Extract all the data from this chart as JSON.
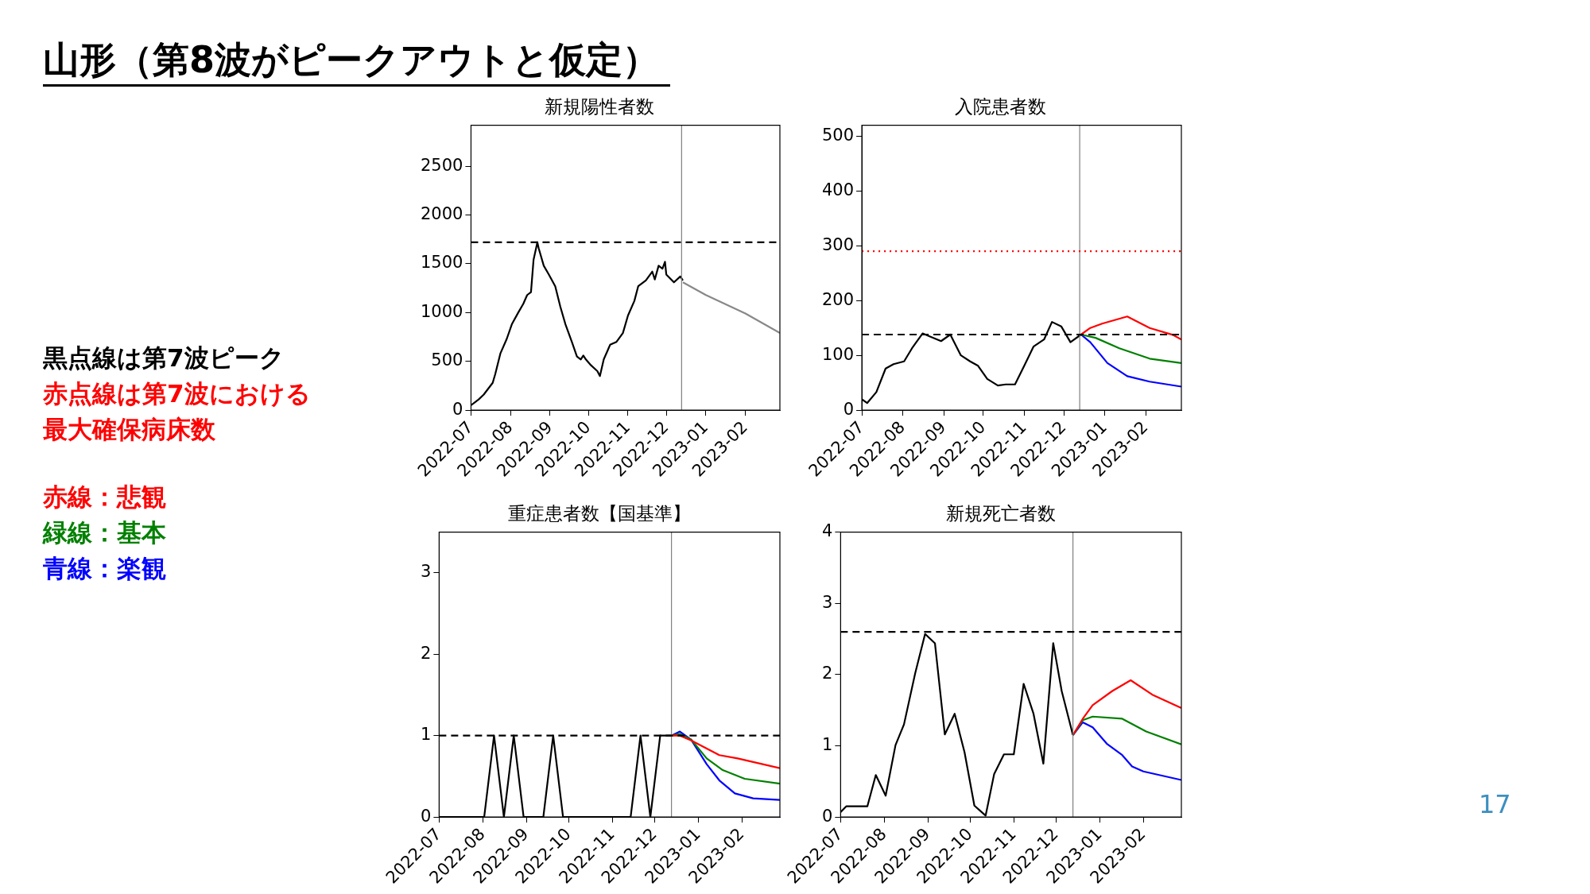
{
  "chart_data": [
    {
      "type": "other",
      "title": "山形（第8波がピークアウトと仮定）",
      "annotations": [
        "黒点線は第7波ピーク",
        "赤点線は第7波における",
        "最大確保病床数",
        "赤線：悲観",
        "緑線：基本",
        "青線：楽観",
        "17"
      ],
      "colors": [
        "#000000",
        "#ff0000",
        "#ff0000",
        "#ff0000",
        "#008000",
        "#0000ff",
        "#3d8fbf"
      ]
    },
    {
      "type": "line",
      "title": "新規陽性者数",
      "xlim": [
        "2022-07-01",
        "2023-02-28"
      ],
      "xticks": [
        "2022-07",
        "2022-08",
        "2022-09",
        "2022-10",
        "2022-11",
        "2022-12",
        "2023-01",
        "2023-02"
      ],
      "ylim": [
        0,
        2920
      ],
      "yticks": [
        0,
        500,
        1000,
        1500,
        2000,
        2500
      ],
      "grid": false,
      "legend": false,
      "ref_lines": [
        {
          "axis": "x",
          "value": "2022-12-13",
          "color": "#808080",
          "line_style": "solid"
        },
        {
          "axis": "y",
          "value": 1720,
          "color": "#000000",
          "line_style": "dashed"
        }
      ],
      "series": [
        {
          "color": "#000000",
          "x": [
            "2022-07-01",
            "2022-07-07",
            "2022-07-11",
            "2022-07-18",
            "2022-07-20",
            "2022-07-24",
            "2022-07-29",
            "2022-08-02",
            "2022-08-07",
            "2022-08-11",
            "2022-08-14",
            "2022-08-17",
            "2022-08-19",
            "2022-08-22",
            "2022-08-23",
            "2022-08-27",
            "2022-08-31",
            "2022-09-05",
            "2022-09-09",
            "2022-09-13",
            "2022-09-18",
            "2022-09-22",
            "2022-09-25",
            "2022-09-27",
            "2022-09-29",
            "2022-10-03",
            "2022-10-08",
            "2022-10-10",
            "2022-10-13",
            "2022-10-17",
            "2022-10-18",
            "2022-10-23",
            "2022-10-28",
            "2022-11-01",
            "2022-11-06",
            "2022-11-09",
            "2022-11-15",
            "2022-11-20",
            "2022-11-22",
            "2022-11-25",
            "2022-11-28",
            "2022-11-30",
            "2022-12-01",
            "2022-12-07",
            "2022-12-12",
            "2022-12-14"
          ],
          "values": [
            50,
            110,
            160,
            280,
            370,
            580,
            730,
            880,
            1000,
            1090,
            1180,
            1210,
            1540,
            1720,
            1660,
            1480,
            1390,
            1270,
            1060,
            880,
            700,
            550,
            520,
            560,
            520,
            460,
            400,
            350,
            520,
            640,
            670,
            700,
            790,
            970,
            1120,
            1270,
            1330,
            1420,
            1340,
            1480,
            1450,
            1520,
            1390,
            1310,
            1370,
            1330
          ]
        },
        {
          "color": "#888888",
          "x": [
            "2022-12-14",
            "2023-01-01",
            "2023-02-01",
            "2023-02-28"
          ],
          "values": [
            1310,
            1180,
            990,
            790
          ]
        }
      ]
    },
    {
      "type": "line",
      "title": "入院患者数",
      "xlim": [
        "2022-07-01",
        "2023-02-28"
      ],
      "xticks": [
        "2022-07",
        "2022-08",
        "2022-09",
        "2022-10",
        "2022-11",
        "2022-12",
        "2023-01",
        "2023-02"
      ],
      "ylim": [
        0,
        520
      ],
      "yticks": [
        0,
        100,
        200,
        300,
        400,
        500
      ],
      "grid": false,
      "legend": false,
      "ref_lines": [
        {
          "axis": "x",
          "value": "2022-12-13",
          "color": "#808080",
          "line_style": "solid"
        },
        {
          "axis": "y",
          "value": 138,
          "color": "#000000",
          "line_style": "dashed"
        },
        {
          "axis": "y",
          "value": 290,
          "color": "#ff0000",
          "line_style": "dotted"
        }
      ],
      "series": [
        {
          "color": "#000000",
          "x": [
            "2022-07-01",
            "2022-07-05",
            "2022-07-12",
            "2022-07-19",
            "2022-07-25",
            "2022-08-02",
            "2022-08-08",
            "2022-08-16",
            "2022-08-22",
            "2022-08-30",
            "2022-09-06",
            "2022-09-14",
            "2022-09-21",
            "2022-09-27",
            "2022-10-04",
            "2022-10-12",
            "2022-10-18",
            "2022-10-25",
            "2022-11-01",
            "2022-11-08",
            "2022-11-16",
            "2022-11-22",
            "2022-11-29",
            "2022-12-06",
            "2022-12-14"
          ],
          "values": [
            20,
            13,
            33,
            76,
            84,
            89,
            113,
            140,
            134,
            126,
            138,
            100,
            89,
            81,
            57,
            45,
            47,
            47,
            81,
            116,
            129,
            161,
            153,
            124,
            138
          ]
        },
        {
          "color": "#ff0000",
          "x": [
            "2022-12-14",
            "2022-12-21",
            "2022-12-30",
            "2023-01-18",
            "2023-02-04",
            "2023-02-22",
            "2023-02-28"
          ],
          "values": [
            138,
            150,
            158,
            171,
            150,
            137,
            129
          ]
        },
        {
          "color": "#008000",
          "x": [
            "2022-12-14",
            "2022-12-25",
            "2023-01-12",
            "2023-02-04",
            "2023-02-28"
          ],
          "values": [
            138,
            132,
            113,
            94,
            86
          ]
        },
        {
          "color": "#0000ff",
          "x": [
            "2022-12-14",
            "2022-12-21",
            "2023-01-03",
            "2023-01-18",
            "2023-02-04",
            "2023-02-28"
          ],
          "values": [
            138,
            124,
            86,
            62,
            52,
            43
          ]
        }
      ]
    },
    {
      "type": "line",
      "title": "重症患者数【国基準】",
      "xlim": [
        "2022-07-01",
        "2023-02-28"
      ],
      "xticks": [
        "2022-07",
        "2022-08",
        "2022-09",
        "2022-10",
        "2022-11",
        "2022-12",
        "2023-01",
        "2023-02"
      ],
      "ylim": [
        0,
        3.5
      ],
      "yticks": [
        0,
        1,
        2,
        3
      ],
      "grid": false,
      "legend": false,
      "ref_lines": [
        {
          "axis": "x",
          "value": "2022-12-13",
          "color": "#808080",
          "line_style": "solid"
        },
        {
          "axis": "y",
          "value": 1,
          "color": "#000000",
          "line_style": "dashed"
        }
      ],
      "series": [
        {
          "color": "#000000",
          "x": [
            "2022-07-01",
            "2022-08-02",
            "2022-08-09",
            "2022-08-16",
            "2022-08-23",
            "2022-08-30",
            "2022-09-13",
            "2022-09-20",
            "2022-09-27",
            "2022-11-14",
            "2022-11-21",
            "2022-11-28",
            "2022-12-05",
            "2022-12-13"
          ],
          "values": [
            0,
            0,
            1,
            0,
            1,
            0,
            0,
            1,
            0,
            0,
            1,
            0,
            1,
            1
          ]
        },
        {
          "color": "#ff0000",
          "x": [
            "2022-12-13",
            "2022-12-19",
            "2022-12-27",
            "2023-01-16",
            "2023-01-29",
            "2023-02-28"
          ],
          "values": [
            1,
            1,
            0.94,
            0.76,
            0.72,
            0.6
          ]
        },
        {
          "color": "#008000",
          "x": [
            "2022-12-13",
            "2022-12-19",
            "2022-12-27",
            "2023-01-07",
            "2023-01-18",
            "2023-02-03",
            "2023-02-28"
          ],
          "values": [
            1,
            1.02,
            0.95,
            0.72,
            0.58,
            0.47,
            0.41
          ]
        },
        {
          "color": "#0000ff",
          "x": [
            "2022-12-13",
            "2022-12-19",
            "2022-12-27",
            "2023-01-07",
            "2023-01-16",
            "2023-01-27",
            "2023-02-09",
            "2023-02-28"
          ],
          "values": [
            1,
            1.05,
            0.95,
            0.65,
            0.45,
            0.29,
            0.23,
            0.21
          ]
        }
      ]
    },
    {
      "type": "line",
      "title": "新規死亡者数",
      "xlim": [
        "2022-07-01",
        "2023-02-28"
      ],
      "xticks": [
        "2022-07",
        "2022-08",
        "2022-09",
        "2022-10",
        "2022-11",
        "2022-12",
        "2023-01",
        "2023-02"
      ],
      "ylim": [
        0,
        4
      ],
      "yticks": [
        0,
        1,
        2,
        3,
        4
      ],
      "grid": false,
      "legend": false,
      "ref_lines": [
        {
          "axis": "x",
          "value": "2022-12-13",
          "color": "#808080",
          "line_style": "solid"
        },
        {
          "axis": "y",
          "value": 2.6,
          "color": "#000000",
          "line_style": "dashed"
        }
      ],
      "series": [
        {
          "color": "#000000",
          "x": [
            "2022-07-01",
            "2022-07-05",
            "2022-07-20",
            "2022-07-26",
            "2022-08-02",
            "2022-08-09",
            "2022-08-15",
            "2022-08-23",
            "2022-08-30",
            "2022-09-06",
            "2022-09-13",
            "2022-09-20",
            "2022-09-27",
            "2022-10-04",
            "2022-10-12",
            "2022-10-18",
            "2022-10-25",
            "2022-11-01",
            "2022-11-08",
            "2022-11-15",
            "2022-11-22",
            "2022-11-29",
            "2022-12-05",
            "2022-12-13"
          ],
          "values": [
            0.07,
            0.15,
            0.15,
            0.59,
            0.3,
            1.01,
            1.3,
            2.02,
            2.57,
            2.44,
            1.16,
            1.45,
            0.91,
            0.16,
            0.02,
            0.6,
            0.88,
            0.88,
            1.87,
            1.45,
            0.75,
            2.44,
            1.77,
            1.15
          ]
        },
        {
          "color": "#ff0000",
          "x": [
            "2022-12-13",
            "2022-12-20",
            "2022-12-27",
            "2023-01-10",
            "2023-01-23",
            "2023-02-08",
            "2023-02-28"
          ],
          "values": [
            1.15,
            1.38,
            1.57,
            1.77,
            1.92,
            1.71,
            1.53
          ]
        },
        {
          "color": "#008000",
          "x": [
            "2022-12-13",
            "2022-12-20",
            "2022-12-27",
            "2023-01-17",
            "2023-02-03",
            "2023-02-28"
          ],
          "values": [
            1.15,
            1.36,
            1.41,
            1.38,
            1.2,
            1.02
          ]
        },
        {
          "color": "#0000ff",
          "x": [
            "2022-12-13",
            "2022-12-20",
            "2022-12-27",
            "2023-01-06",
            "2023-01-17",
            "2023-01-24",
            "2023-02-01",
            "2023-02-28"
          ],
          "values": [
            1.15,
            1.33,
            1.26,
            1.03,
            0.87,
            0.71,
            0.64,
            0.52
          ]
        }
      ]
    }
  ]
}
